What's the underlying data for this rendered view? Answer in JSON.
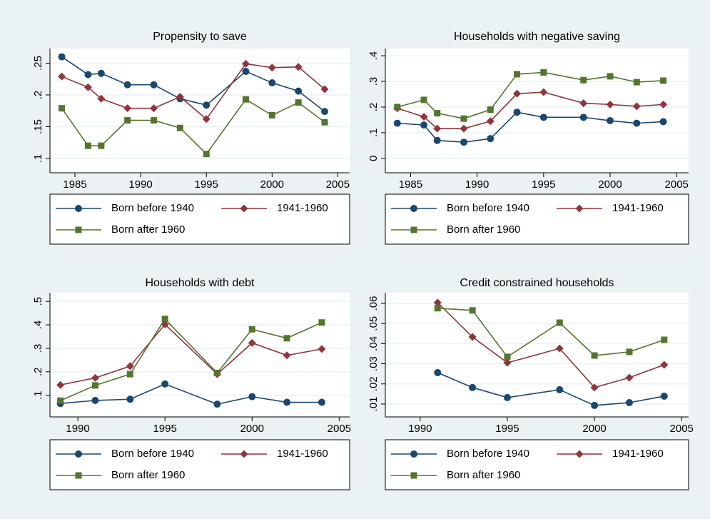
{
  "chart_data": [
    {
      "type": "line",
      "title": "Propensity to save",
      "x": [
        1984,
        1986,
        1987,
        1989,
        1991,
        1993,
        1995,
        1998,
        2000,
        2002,
        2004
      ],
      "series": [
        {
          "name": "Born before 1940",
          "color": "#1a476f",
          "marker": "circle",
          "values": [
            0.26,
            0.232,
            0.234,
            0.216,
            0.216,
            0.194,
            0.184,
            0.237,
            0.219,
            0.206,
            0.174
          ]
        },
        {
          "name": "1941-1960",
          "color": "#90353b",
          "marker": "diamond",
          "values": [
            0.229,
            0.212,
            0.194,
            0.179,
            0.179,
            0.197,
            0.162,
            0.249,
            0.243,
            0.244,
            0.209
          ]
        },
        {
          "name": "Born after 1960",
          "color": "#55752f",
          "marker": "square",
          "values": [
            0.179,
            0.12,
            0.12,
            0.16,
            0.16,
            0.148,
            0.107,
            0.193,
            0.168,
            0.188,
            0.157
          ]
        }
      ],
      "xlim": [
        1983.1,
        2005.9
      ],
      "xticks": [
        1985,
        1990,
        1995,
        2000,
        2005
      ],
      "ylim": [
        0.0775,
        0.273
      ],
      "yticks": [
        {
          "value": 0.1,
          "label": ".1"
        },
        {
          "value": 0.15,
          "label": ".15"
        },
        {
          "value": 0.2,
          "label": ".2"
        },
        {
          "value": 0.25,
          "label": ".25"
        }
      ],
      "grid": true
    },
    {
      "type": "line",
      "title": "Households with negative saving",
      "x": [
        1984,
        1986,
        1987,
        1989,
        1991,
        1993,
        1995,
        1998,
        2000,
        2002,
        2004
      ],
      "series": [
        {
          "name": "Born before 1940",
          "color": "#1a476f",
          "marker": "circle",
          "values": [
            0.137,
            0.13,
            0.07,
            0.063,
            0.077,
            0.18,
            0.16,
            0.16,
            0.147,
            0.137,
            0.143
          ]
        },
        {
          "name": "1941-1960",
          "color": "#90353b",
          "marker": "diamond",
          "values": [
            0.195,
            0.162,
            0.116,
            0.116,
            0.145,
            0.252,
            0.258,
            0.215,
            0.21,
            0.203,
            0.21
          ]
        },
        {
          "name": "Born after 1960",
          "color": "#55752f",
          "marker": "square",
          "values": [
            0.2,
            0.228,
            0.176,
            0.155,
            0.19,
            0.328,
            0.335,
            0.305,
            0.32,
            0.297,
            0.303
          ]
        }
      ],
      "xlim": [
        1983.1,
        2005.9
      ],
      "xticks": [
        1985,
        1990,
        1995,
        2000,
        2005
      ],
      "ylim": [
        -0.056,
        0.428
      ],
      "yticks": [
        0,
        {
          "value": 0.1,
          "label": ".1"
        },
        {
          "value": 0.2,
          "label": ".2"
        },
        {
          "value": 0.3,
          "label": ".3"
        },
        {
          "value": 0.4,
          "label": ".4"
        }
      ],
      "grid": true
    },
    {
      "type": "line",
      "title": "Households with debt",
      "x": [
        1989,
        1991,
        1993,
        1995,
        1998,
        2000,
        2002,
        2004
      ],
      "series": [
        {
          "name": "Born before 1940",
          "color": "#1a476f",
          "marker": "circle",
          "values": [
            0.065,
            0.078,
            0.083,
            0.148,
            0.062,
            0.094,
            0.07,
            0.07
          ]
        },
        {
          "name": "1941-1960",
          "color": "#90353b",
          "marker": "diamond",
          "values": [
            0.144,
            0.174,
            0.224,
            0.402,
            0.19,
            0.323,
            0.27,
            0.297
          ]
        },
        {
          "name": "Born after 1960",
          "color": "#55752f",
          "marker": "square",
          "values": [
            0.077,
            0.142,
            0.19,
            0.425,
            0.195,
            0.381,
            0.343,
            0.41
          ]
        }
      ],
      "xlim": [
        1988.4,
        2005.6
      ],
      "xticks": [
        1990,
        1995,
        2000,
        2005
      ],
      "ylim": [
        0.0077,
        0.537
      ],
      "yticks": [
        {
          "value": 0.1,
          "label": ".1"
        },
        {
          "value": 0.2,
          "label": ".2"
        },
        {
          "value": 0.3,
          "label": ".3"
        },
        {
          "value": 0.4,
          "label": ".4"
        },
        {
          "value": 0.5,
          "label": ".5"
        }
      ],
      "grid": true
    },
    {
      "type": "line",
      "title": "Credit constrained households",
      "x": [
        1991,
        1993,
        1995,
        1998,
        2000,
        2002,
        2004
      ],
      "series": [
        {
          "name": "Born before 1940",
          "color": "#1a476f",
          "marker": "circle",
          "values": [
            0.0256,
            0.0182,
            0.0132,
            0.0171,
            0.0093,
            0.0107,
            0.0139
          ]
        },
        {
          "name": "1941-1960",
          "color": "#90353b",
          "marker": "diamond",
          "values": [
            0.0604,
            0.0433,
            0.0305,
            0.0376,
            0.0182,
            0.0231,
            0.0295
          ]
        },
        {
          "name": "Born after 1960",
          "color": "#55752f",
          "marker": "square",
          "values": [
            0.0576,
            0.0565,
            0.0334,
            0.0504,
            0.0341,
            0.0359,
            0.0419
          ]
        }
      ],
      "xlim": [
        1988.0,
        2005.4
      ],
      "xticks": [
        1990,
        1995,
        2000,
        2005
      ],
      "ylim": [
        0.0036,
        0.0653
      ],
      "yticks": [
        {
          "value": 0.01,
          "label": ".01"
        },
        {
          "value": 0.02,
          "label": ".02"
        },
        {
          "value": 0.03,
          "label": ".03"
        },
        {
          "value": 0.04,
          "label": ".04"
        },
        {
          "value": 0.05,
          "label": ".05"
        },
        {
          "value": 0.06,
          "label": ".06"
        }
      ],
      "grid": true
    }
  ]
}
